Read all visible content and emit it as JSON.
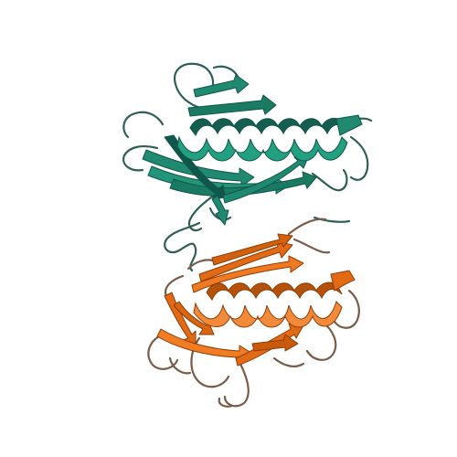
{
  "scene": {
    "background": "#ffffff",
    "chains": [
      {
        "id": "A",
        "color": "#1f8a70",
        "dark": "#10564a",
        "coil": "#2e5f57"
      },
      {
        "id": "B",
        "color": "#e36a14",
        "dark": "#8f3c06",
        "coil": "#7a5a48"
      }
    ]
  }
}
